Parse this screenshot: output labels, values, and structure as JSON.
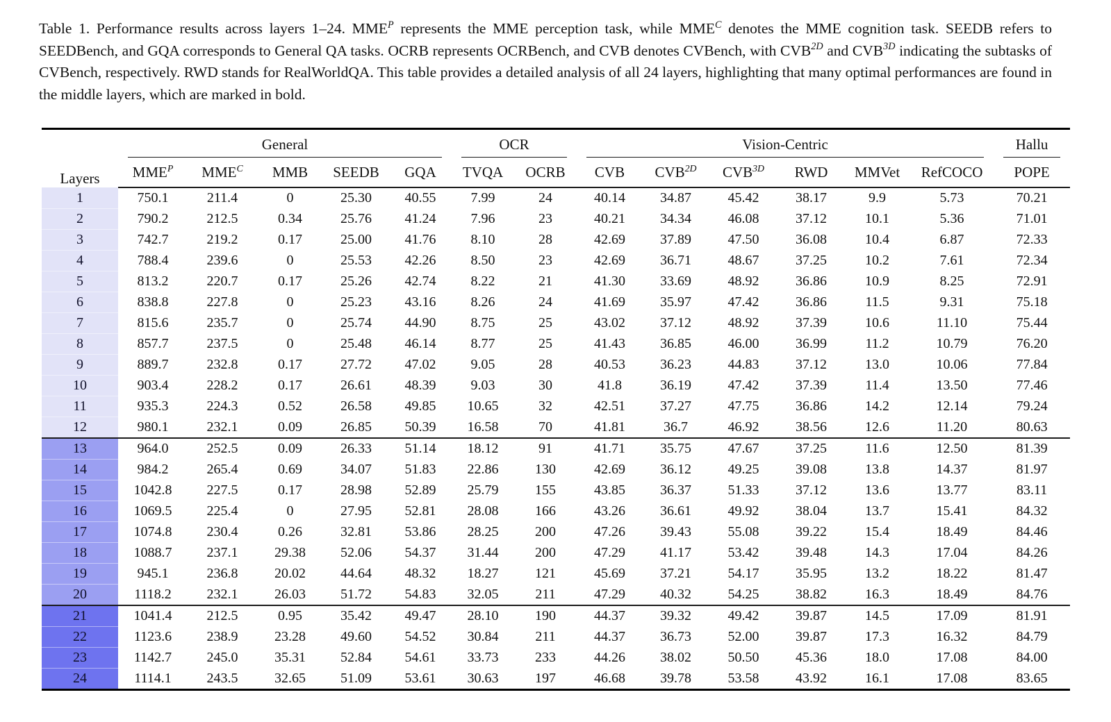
{
  "caption": {
    "segments": [
      {
        "t": "Table 1. Performance results across layers 1–24. MME"
      },
      {
        "sup": "P"
      },
      {
        "t": " represents the MME perception task, while MME"
      },
      {
        "sup": "C"
      },
      {
        "t": " denotes the MME cognition task.  SEEDB refers to SEEDBench, and GQA corresponds to General QA tasks.  OCRB represents OCRBench, and CVB denotes CVBench, with CVB"
      },
      {
        "sup": "2D"
      },
      {
        "t": " and CVB"
      },
      {
        "sup": "3D"
      },
      {
        "t": " indicating the subtasks of CVBench, respectively. RWD stands for RealWorldQA. This table provides a detailed analysis of all 24 layers, highlighting that many optimal performances are found in the middle layers, which are marked in bold."
      }
    ]
  },
  "table": {
    "row_header": "Layers",
    "col_groups": [
      {
        "label": "General",
        "span": 5
      },
      {
        "label": "OCR",
        "span": 2
      },
      {
        "label": "Vision-Centric",
        "span": 6
      },
      {
        "label": "Hallu",
        "span": 1
      }
    ],
    "columns": [
      {
        "base": "MME",
        "sup": "P"
      },
      {
        "base": "MME",
        "sup": "C"
      },
      {
        "base": "MMB"
      },
      {
        "base": "SEEDB"
      },
      {
        "base": "GQA"
      },
      {
        "base": "TVQA"
      },
      {
        "base": "OCRB"
      },
      {
        "base": "CVB"
      },
      {
        "base": "CVB",
        "sup": "2D"
      },
      {
        "base": "CVB",
        "sup": "3D"
      },
      {
        "base": "RWD"
      },
      {
        "base": "MMVet"
      },
      {
        "base": "RefCOCO"
      },
      {
        "base": "POPE"
      }
    ],
    "layer_group_colors": {
      "g1": "#e2e3f8",
      "g2": "#9b9ff2",
      "g3": "#6e73ef"
    },
    "rows": [
      {
        "layer": "1",
        "group": 1,
        "values": [
          "750.1",
          "211.4",
          "0",
          "25.30",
          "40.55",
          "7.99",
          "24",
          "40.14",
          "34.87",
          "45.42",
          "38.17",
          "9.9",
          "5.73",
          "70.21"
        ],
        "bold": []
      },
      {
        "layer": "2",
        "group": 1,
        "values": [
          "790.2",
          "212.5",
          "0.34",
          "25.76",
          "41.24",
          "7.96",
          "23",
          "40.21",
          "34.34",
          "46.08",
          "37.12",
          "10.1",
          "5.36",
          "71.01"
        ],
        "bold": []
      },
      {
        "layer": "3",
        "group": 1,
        "values": [
          "742.7",
          "219.2",
          "0.17",
          "25.00",
          "41.76",
          "8.10",
          "28",
          "42.69",
          "37.89",
          "47.50",
          "36.08",
          "10.4",
          "6.87",
          "72.33"
        ],
        "bold": []
      },
      {
        "layer": "4",
        "group": 1,
        "values": [
          "788.4",
          "239.6",
          "0",
          "25.53",
          "42.26",
          "8.50",
          "23",
          "42.69",
          "36.71",
          "48.67",
          "37.25",
          "10.2",
          "7.61",
          "72.34"
        ],
        "bold": []
      },
      {
        "layer": "5",
        "group": 1,
        "values": [
          "813.2",
          "220.7",
          "0.17",
          "25.26",
          "42.74",
          "8.22",
          "21",
          "41.30",
          "33.69",
          "48.92",
          "36.86",
          "10.9",
          "8.25",
          "72.91"
        ],
        "bold": []
      },
      {
        "layer": "6",
        "group": 1,
        "values": [
          "838.8",
          "227.8",
          "0",
          "25.23",
          "43.16",
          "8.26",
          "24",
          "41.69",
          "35.97",
          "47.42",
          "36.86",
          "11.5",
          "9.31",
          "75.18"
        ],
        "bold": []
      },
      {
        "layer": "7",
        "group": 1,
        "values": [
          "815.6",
          "235.7",
          "0",
          "25.74",
          "44.90",
          "8.75",
          "25",
          "43.02",
          "37.12",
          "48.92",
          "37.39",
          "10.6",
          "11.10",
          "75.44"
        ],
        "bold": []
      },
      {
        "layer": "8",
        "group": 1,
        "values": [
          "857.7",
          "237.5",
          "0",
          "25.48",
          "46.14",
          "8.77",
          "25",
          "41.43",
          "36.85",
          "46.00",
          "36.99",
          "11.2",
          "10.79",
          "76.20"
        ],
        "bold": []
      },
      {
        "layer": "9",
        "group": 1,
        "values": [
          "889.7",
          "232.8",
          "0.17",
          "27.72",
          "47.02",
          "9.05",
          "28",
          "40.53",
          "36.23",
          "44.83",
          "37.12",
          "13.0",
          "10.06",
          "77.84"
        ],
        "bold": []
      },
      {
        "layer": "10",
        "group": 1,
        "values": [
          "903.4",
          "228.2",
          "0.17",
          "26.61",
          "48.39",
          "9.03",
          "30",
          "41.8",
          "36.19",
          "47.42",
          "37.39",
          "11.4",
          "13.50",
          "77.46"
        ],
        "bold": []
      },
      {
        "layer": "11",
        "group": 1,
        "values": [
          "935.3",
          "224.3",
          "0.52",
          "26.58",
          "49.85",
          "10.65",
          "32",
          "42.51",
          "37.27",
          "47.75",
          "36.86",
          "14.2",
          "12.14",
          "79.24"
        ],
        "bold": []
      },
      {
        "layer": "12",
        "group": 1,
        "values": [
          "980.1",
          "232.1",
          "0.09",
          "26.85",
          "50.39",
          "16.58",
          "70",
          "41.81",
          "36.7",
          "46.92",
          "38.56",
          "12.6",
          "11.20",
          "80.63"
        ],
        "bold": []
      },
      {
        "layer": "13",
        "group": 2,
        "values": [
          "964.0",
          "252.5",
          "0.09",
          "26.33",
          "51.14",
          "18.12",
          "91",
          "41.71",
          "35.75",
          "47.67",
          "37.25",
          "11.6",
          "12.50",
          "81.39"
        ],
        "bold": []
      },
      {
        "layer": "14",
        "group": 2,
        "values": [
          "984.2",
          "265.4",
          "0.69",
          "34.07",
          "51.83",
          "22.86",
          "130",
          "42.69",
          "36.12",
          "49.25",
          "39.08",
          "13.8",
          "14.37",
          "81.97"
        ],
        "bold": [
          1
        ]
      },
      {
        "layer": "15",
        "group": 2,
        "values": [
          "1042.8",
          "227.5",
          "0.17",
          "28.98",
          "52.89",
          "25.79",
          "155",
          "43.85",
          "36.37",
          "51.33",
          "37.12",
          "13.6",
          "13.77",
          "83.11"
        ],
        "bold": []
      },
      {
        "layer": "16",
        "group": 2,
        "values": [
          "1069.5",
          "225.4",
          "0",
          "27.95",
          "52.81",
          "28.08",
          "166",
          "43.26",
          "36.61",
          "49.92",
          "38.04",
          "13.7",
          "15.41",
          "84.32"
        ],
        "bold": []
      },
      {
        "layer": "17",
        "group": 2,
        "values": [
          "1074.8",
          "230.4",
          "0.26",
          "32.81",
          "53.86",
          "28.25",
          "200",
          "47.26",
          "39.43",
          "55.08",
          "39.22",
          "15.4",
          "18.49",
          "84.46"
        ],
        "bold": [
          9,
          12
        ]
      },
      {
        "layer": "18",
        "group": 2,
        "values": [
          "1088.7",
          "237.1",
          "29.38",
          "52.06",
          "54.37",
          "31.44",
          "200",
          "47.29",
          "41.17",
          "53.42",
          "39.48",
          "14.3",
          "17.04",
          "84.26"
        ],
        "bold": [
          7,
          8
        ]
      },
      {
        "layer": "19",
        "group": 2,
        "values": [
          "945.1",
          "236.8",
          "20.02",
          "44.64",
          "48.32",
          "18.27",
          "121",
          "45.69",
          "37.21",
          "54.17",
          "35.95",
          "13.2",
          "18.22",
          "81.47"
        ],
        "bold": []
      },
      {
        "layer": "20",
        "group": 2,
        "values": [
          "1118.2",
          "232.1",
          "26.03",
          "51.72",
          "54.83",
          "32.05",
          "211",
          "47.29",
          "40.32",
          "54.25",
          "38.82",
          "16.3",
          "18.49",
          "84.76"
        ],
        "bold": [
          4,
          7,
          12
        ]
      },
      {
        "layer": "21",
        "group": 3,
        "values": [
          "1041.4",
          "212.5",
          "0.95",
          "35.42",
          "49.47",
          "28.10",
          "190",
          "44.37",
          "39.32",
          "49.42",
          "39.87",
          "14.5",
          "17.09",
          "81.91"
        ],
        "bold": []
      },
      {
        "layer": "22",
        "group": 3,
        "values": [
          "1123.6",
          "238.9",
          "23.28",
          "49.60",
          "54.52",
          "30.84",
          "211",
          "44.37",
          "36.73",
          "52.00",
          "39.87",
          "17.3",
          "16.32",
          "84.79"
        ],
        "bold": [
          13
        ]
      },
      {
        "layer": "23",
        "group": 3,
        "values": [
          "1142.7",
          "245.0",
          "35.31",
          "52.84",
          "54.61",
          "33.73",
          "233",
          "44.26",
          "38.02",
          "50.50",
          "45.36",
          "18.0",
          "17.08",
          "84.00"
        ],
        "bold": [
          0,
          2,
          3,
          5,
          6,
          10,
          11
        ]
      },
      {
        "layer": "24",
        "group": 3,
        "values": [
          "1114.1",
          "243.5",
          "32.65",
          "51.09",
          "53.61",
          "30.63",
          "197",
          "46.68",
          "39.78",
          "53.58",
          "43.92",
          "16.1",
          "17.08",
          "83.65"
        ],
        "bold": []
      }
    ]
  }
}
